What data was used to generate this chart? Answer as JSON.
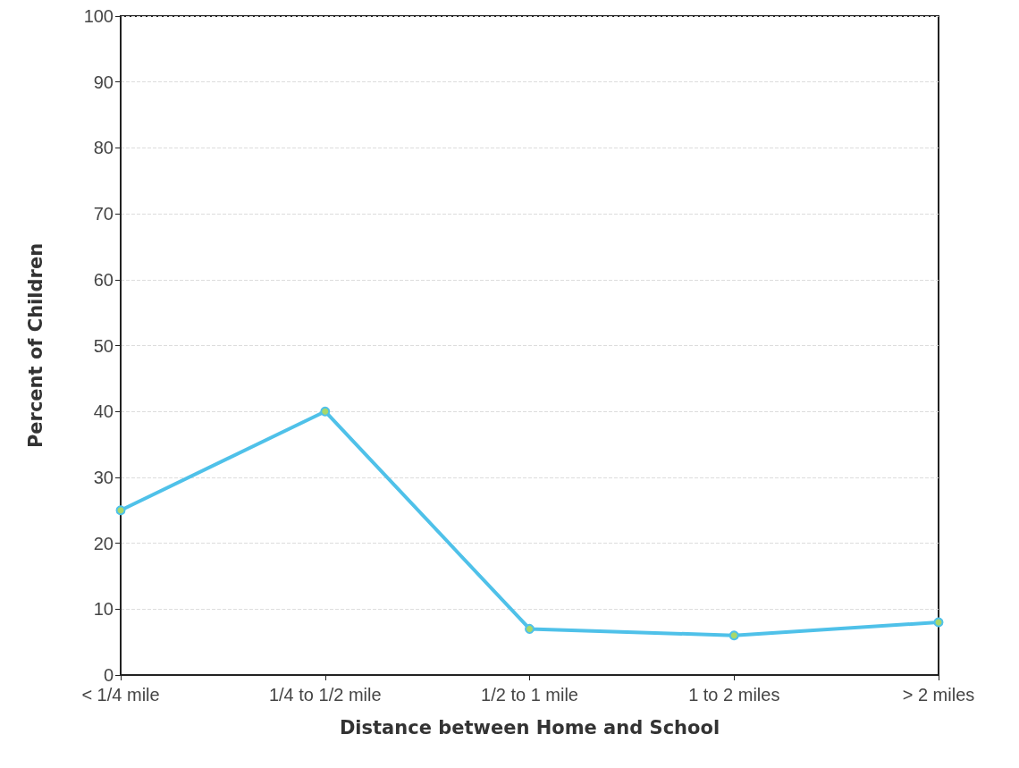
{
  "chart_data": {
    "type": "line",
    "xlabel": "Distance between Home and School",
    "ylabel": "Percent of Children",
    "categories": [
      "< 1/4 mile",
      "1/4 to 1/2 mile",
      "1/2 to 1 mile",
      "1 to 2 miles",
      "> 2 miles"
    ],
    "series": [
      {
        "color": "#4fc1e9",
        "values": [
          25,
          40,
          7,
          6,
          8
        ]
      }
    ],
    "ylim": [
      0,
      100
    ],
    "yticks": [
      0,
      10,
      20,
      30,
      40,
      50,
      60,
      70,
      80,
      90,
      100
    ],
    "grid": "y",
    "marker": "circle",
    "line_style": "solid"
  }
}
